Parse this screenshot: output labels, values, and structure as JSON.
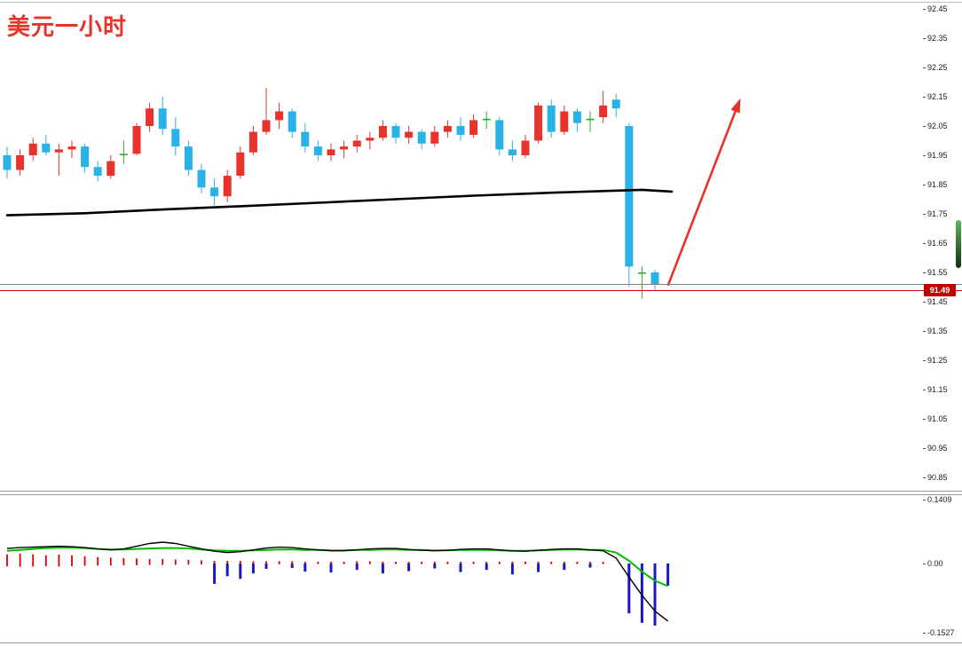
{
  "title": "美元一小时",
  "colors": {
    "up": "#e8332a",
    "down": "#29b2e5",
    "doji": "#2faa2f",
    "ma": "#000000",
    "arrow": "#e8332a",
    "title": "#e8332a",
    "axis_text": "#1a1a1a",
    "green_line": "#00bb00",
    "black_line": "#000000",
    "red_tick": "#dd0000",
    "blue_bar": "#1818c8",
    "tag_bg": "#c00000",
    "tag_fg": "#ffffff",
    "scroll_top": "#5cb85c",
    "scroll_bottom": "#0c300c"
  },
  "chart_data": [
    {
      "type": "candlestick",
      "title": "美元一小时",
      "ylim": [
        90.82,
        92.48
      ],
      "y_ticks": [
        "92.45",
        "92.35",
        "92.25",
        "92.15",
        "92.05",
        "91.95",
        "91.85",
        "91.75",
        "91.65",
        "91.55",
        "91.45",
        "91.35",
        "91.25",
        "91.15",
        "91.05",
        "90.95",
        "90.85"
      ],
      "price_tag": {
        "label": "91.49",
        "value": 91.49
      },
      "hlines": [
        {
          "name": "support-line",
          "price": 91.512,
          "color": "#808080"
        },
        {
          "name": "current-price-line",
          "price": 91.49,
          "color": "#cc0000"
        }
      ],
      "candles": [
        [
          91.95,
          91.98,
          91.87,
          91.9
        ],
        [
          91.9,
          91.97,
          91.88,
          91.95
        ],
        [
          91.95,
          92.01,
          91.93,
          91.99
        ],
        [
          91.99,
          92.02,
          91.95,
          91.96
        ],
        [
          91.96,
          91.99,
          91.88,
          91.97
        ],
        [
          91.97,
          92.0,
          91.94,
          91.98
        ],
        [
          91.98,
          91.99,
          91.89,
          91.91
        ],
        [
          91.91,
          91.93,
          91.86,
          91.88
        ],
        [
          91.88,
          91.95,
          91.87,
          91.93
        ],
        [
          91.95,
          92.0,
          91.92,
          91.955
        ],
        [
          91.955,
          92.06,
          91.95,
          92.05
        ],
        [
          92.05,
          92.13,
          92.03,
          92.11
        ],
        [
          92.11,
          92.15,
          92.02,
          92.04
        ],
        [
          92.04,
          92.08,
          91.95,
          91.98
        ],
        [
          91.98,
          92.0,
          91.88,
          91.9
        ],
        [
          91.9,
          91.92,
          91.82,
          91.84
        ],
        [
          91.84,
          91.87,
          91.78,
          91.81
        ],
        [
          91.81,
          91.9,
          91.79,
          91.88
        ],
        [
          91.88,
          91.98,
          91.87,
          91.96
        ],
        [
          91.96,
          92.05,
          91.95,
          92.03
        ],
        [
          92.03,
          92.18,
          92.02,
          92.07
        ],
        [
          92.07,
          92.13,
          92.04,
          92.1
        ],
        [
          92.1,
          92.11,
          92.01,
          92.03
        ],
        [
          92.03,
          92.06,
          91.96,
          91.98
        ],
        [
          91.98,
          92.0,
          91.93,
          91.95
        ],
        [
          91.95,
          91.99,
          91.93,
          91.97
        ],
        [
          91.97,
          92.0,
          91.94,
          91.98
        ],
        [
          91.98,
          92.02,
          91.96,
          92.0
        ],
        [
          92.0,
          92.03,
          91.97,
          92.01
        ],
        [
          92.01,
          92.07,
          92.0,
          92.05
        ],
        [
          92.05,
          92.06,
          91.99,
          92.01
        ],
        [
          92.01,
          92.05,
          91.99,
          92.03
        ],
        [
          92.03,
          92.04,
          91.97,
          91.99
        ],
        [
          91.99,
          92.05,
          91.98,
          92.03
        ],
        [
          92.03,
          92.07,
          92.01,
          92.05
        ],
        [
          92.05,
          92.08,
          92.0,
          92.02
        ],
        [
          92.02,
          92.09,
          92.01,
          92.07
        ],
        [
          92.07,
          92.1,
          92.04,
          92.075
        ],
        [
          92.07,
          92.08,
          91.95,
          91.97
        ],
        [
          91.97,
          92.0,
          91.93,
          91.95
        ],
        [
          91.95,
          92.02,
          91.94,
          92.0
        ],
        [
          92.0,
          92.13,
          91.99,
          92.12
        ],
        [
          92.12,
          92.14,
          92.01,
          92.03
        ],
        [
          92.03,
          92.12,
          92.02,
          92.1
        ],
        [
          92.1,
          92.11,
          92.03,
          92.06
        ],
        [
          92.07,
          92.1,
          92.03,
          92.075
        ],
        [
          92.08,
          92.17,
          92.06,
          92.12
        ],
        [
          92.14,
          92.16,
          92.08,
          92.11
        ],
        [
          92.05,
          92.06,
          91.5,
          91.57
        ],
        [
          91.545,
          91.57,
          91.46,
          91.55
        ],
        [
          91.55,
          91.56,
          91.49,
          91.51
        ]
      ],
      "ma_line": [
        [
          0,
          91.745
        ],
        [
          6,
          91.752
        ],
        [
          12,
          91.765
        ],
        [
          18,
          91.776
        ],
        [
          24,
          91.788
        ],
        [
          30,
          91.8
        ],
        [
          36,
          91.812
        ],
        [
          42,
          91.822
        ],
        [
          46,
          91.828
        ],
        [
          49,
          91.832
        ],
        [
          51.3,
          91.826
        ]
      ],
      "arrow": {
        "from": [
          51.0,
          91.505
        ],
        "to": [
          56.6,
          92.145
        ]
      }
    },
    {
      "type": "macd",
      "y_ticks": [
        {
          "label": "0.1409",
          "value": 0.1409
        },
        {
          "label": "0.00",
          "value": 0.0
        },
        {
          "label": "-0.1527",
          "value": -0.1527
        }
      ],
      "green_line": [
        0.028,
        0.03,
        0.032,
        0.034,
        0.035,
        0.035,
        0.034,
        0.032,
        0.031,
        0.031,
        0.032,
        0.033,
        0.034,
        0.034,
        0.033,
        0.031,
        0.029,
        0.028,
        0.028,
        0.029,
        0.03,
        0.031,
        0.031,
        0.03,
        0.03,
        0.029,
        0.029,
        0.03,
        0.03,
        0.031,
        0.031,
        0.03,
        0.03,
        0.029,
        0.029,
        0.03,
        0.03,
        0.03,
        0.029,
        0.028,
        0.028,
        0.029,
        0.03,
        0.031,
        0.031,
        0.03,
        0.03,
        0.024,
        0.006,
        -0.018,
        -0.038,
        -0.05
      ],
      "black_line": [
        0.033,
        0.035,
        0.036,
        0.037,
        0.038,
        0.037,
        0.035,
        0.032,
        0.03,
        0.032,
        0.038,
        0.044,
        0.047,
        0.044,
        0.038,
        0.032,
        0.027,
        0.024,
        0.026,
        0.03,
        0.034,
        0.036,
        0.035,
        0.032,
        0.03,
        0.028,
        0.028,
        0.03,
        0.032,
        0.033,
        0.033,
        0.031,
        0.029,
        0.028,
        0.029,
        0.031,
        0.032,
        0.032,
        0.03,
        0.028,
        0.027,
        0.029,
        0.031,
        0.032,
        0.032,
        0.03,
        0.028,
        0.012,
        -0.03,
        -0.07,
        -0.105,
        -0.127
      ],
      "red_ticks": [
        0.02,
        0.022,
        0.02,
        0.018,
        0.02,
        0.018,
        0.016,
        0.014,
        0.013,
        0.012,
        0.011,
        0.01,
        0.01,
        0.009,
        0.008,
        0.007,
        0.006,
        0.006,
        0.006,
        0.005,
        0.005,
        0.005,
        0.005,
        0.004,
        0.004,
        0.004,
        0.004,
        0.005,
        0.005,
        0.004,
        0.004,
        0.004,
        0.004,
        0.004,
        0.004,
        0.004,
        0.004,
        0.004,
        0.004,
        0.004,
        0.004,
        0.004,
        0.004,
        0.004,
        0.004,
        0.004,
        0.004
      ],
      "blue_bars": [
        [
          16,
          -0.045
        ],
        [
          17,
          -0.028
        ],
        [
          18,
          -0.034
        ],
        [
          19,
          -0.022
        ],
        [
          20,
          -0.012
        ],
        [
          22,
          -0.01
        ],
        [
          23,
          -0.018
        ],
        [
          25,
          -0.02
        ],
        [
          27,
          -0.014
        ],
        [
          29,
          -0.022
        ],
        [
          31,
          -0.017
        ],
        [
          33,
          -0.011
        ],
        [
          35,
          -0.019
        ],
        [
          37,
          -0.014
        ],
        [
          39,
          -0.024
        ],
        [
          41,
          -0.019
        ],
        [
          43,
          -0.014
        ],
        [
          45,
          -0.009
        ],
        [
          48,
          -0.11
        ],
        [
          49,
          -0.131
        ],
        [
          50,
          -0.137
        ],
        [
          51,
          -0.049
        ]
      ]
    }
  ]
}
